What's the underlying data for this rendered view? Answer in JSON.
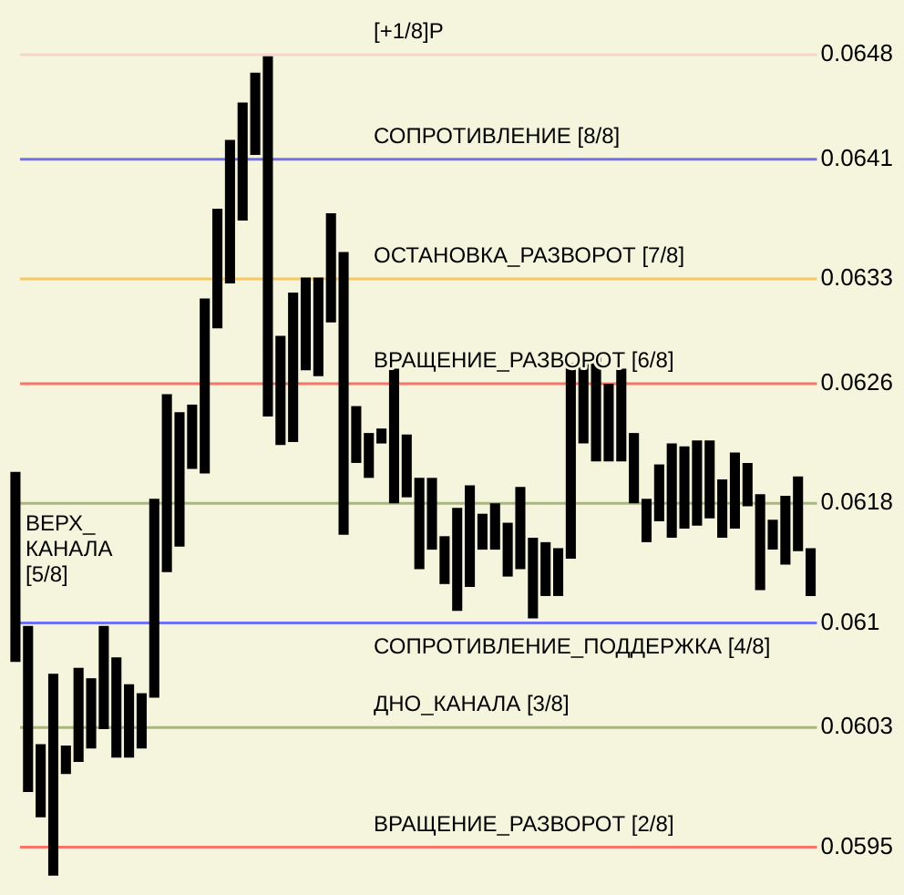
{
  "chart_data": {
    "type": "bar",
    "categories": [
      null,
      null,
      null,
      null,
      null,
      null,
      null,
      null,
      null,
      null,
      null,
      null,
      null,
      null,
      null,
      null,
      null,
      null,
      null,
      null,
      null,
      null,
      null,
      null,
      null,
      null,
      null,
      null,
      null,
      null,
      null,
      null,
      null,
      null,
      null,
      null,
      null,
      null,
      null,
      null,
      null,
      null,
      null,
      null,
      null,
      null,
      null,
      null,
      null,
      null,
      null,
      null,
      null,
      null,
      null,
      null,
      null,
      null,
      null,
      null,
      null,
      null,
      null,
      null
    ],
    "base": [
      0.06074,
      0.05987,
      0.0597,
      0.05931,
      0.05999,
      0.06007,
      0.06016,
      0.06029,
      0.0601,
      0.0601,
      0.06016,
      0.0605,
      0.06134,
      0.06151,
      0.06203,
      0.062,
      0.06297,
      0.06327,
      0.06369,
      0.06413,
      0.06238,
      0.06219,
      0.06221,
      0.06269,
      0.06265,
      0.06301,
      0.06159,
      0.06207,
      0.06197,
      0.0622,
      0.0618,
      0.06184,
      0.06136,
      0.06149,
      0.06126,
      0.06108,
      0.06124,
      0.06149,
      0.06149,
      0.06131,
      0.06136,
      0.06103,
      0.06118,
      0.06118,
      0.06143,
      0.0622,
      0.06208,
      0.06208,
      0.06208,
      0.0618,
      0.06154,
      0.06168,
      0.06157,
      0.06163,
      0.06165,
      0.0617,
      0.06157,
      0.06163,
      0.06178,
      0.06122,
      0.06149,
      0.06139,
      0.06148,
      0.06118
    ],
    "values": [
      0.00127,
      0.00111,
      0.00049,
      0.00135,
      0.00019,
      0.00063,
      0.00047,
      0.00069,
      0.00067,
      0.00049,
      0.00037,
      0.00133,
      0.00119,
      0.0009,
      0.00043,
      0.00117,
      0.0008,
      0.00096,
      0.00079,
      0.00055,
      0.00241,
      0.00073,
      0.001,
      0.00062,
      0.00066,
      0.00073,
      0.00189,
      0.00038,
      0.0003,
      0.0001,
      0.0009,
      0.00042,
      0.00061,
      0.00048,
      0.00032,
      0.00069,
      0.00068,
      0.00024,
      0.00031,
      0.00036,
      0.00055,
      0.00054,
      0.00036,
      0.00032,
      0.00131,
      0.00055,
      0.00073,
      0.00052,
      0.00062,
      0.00047,
      0.00029,
      0.00038,
      0.00063,
      0.00055,
      0.00057,
      0.00052,
      0.00039,
      0.00051,
      0.00029,
      0.00064,
      0.0002,
      0.00046,
      0.0005,
      0.00032
    ],
    "color": "#000000",
    "ylim": [
      0.0593,
      0.0648
    ],
    "yticks": [
      0.0595,
      0.0603,
      0.061,
      0.0618,
      0.0626,
      0.0633,
      0.0641,
      0.0648
    ],
    "grid": false,
    "legend": false,
    "ref_lines": [
      {
        "axis": "y",
        "value": 0.0648,
        "label": "[+1/8]P",
        "color": "#f8d4cc"
      },
      {
        "axis": "y",
        "value": 0.0641,
        "label": "СОПРОТИВЛЕНИЕ [8/8]",
        "color": "#7070f0"
      },
      {
        "axis": "y",
        "value": 0.0633,
        "label": "ОСТАНОВКА_РАЗВОРОТ [7/8]",
        "color": "#f8c864"
      },
      {
        "axis": "y",
        "value": 0.0626,
        "label": "ВРАЩЕНИЕ_РАЗВОРОТ [6/8]",
        "color": "#f87468"
      },
      {
        "axis": "y",
        "value": 0.0618,
        "label": "ВЕРХ_КАНАЛА [5/8]",
        "color": "#a8b878"
      },
      {
        "axis": "y",
        "value": 0.061,
        "label": "СОПРОТИВЛЕНИЕ_ПОДДЕРЖКА [4/8]",
        "color": "#7070f0"
      },
      {
        "axis": "y",
        "value": 0.0603,
        "label": "ДНО_КАНАЛА [3/8]",
        "color": "#a8b878"
      },
      {
        "axis": "y",
        "value": 0.0595,
        "label": "ВРАЩЕНИЕ_РАЗВОРОТ [2/8]",
        "color": "#f87468"
      }
    ]
  }
}
